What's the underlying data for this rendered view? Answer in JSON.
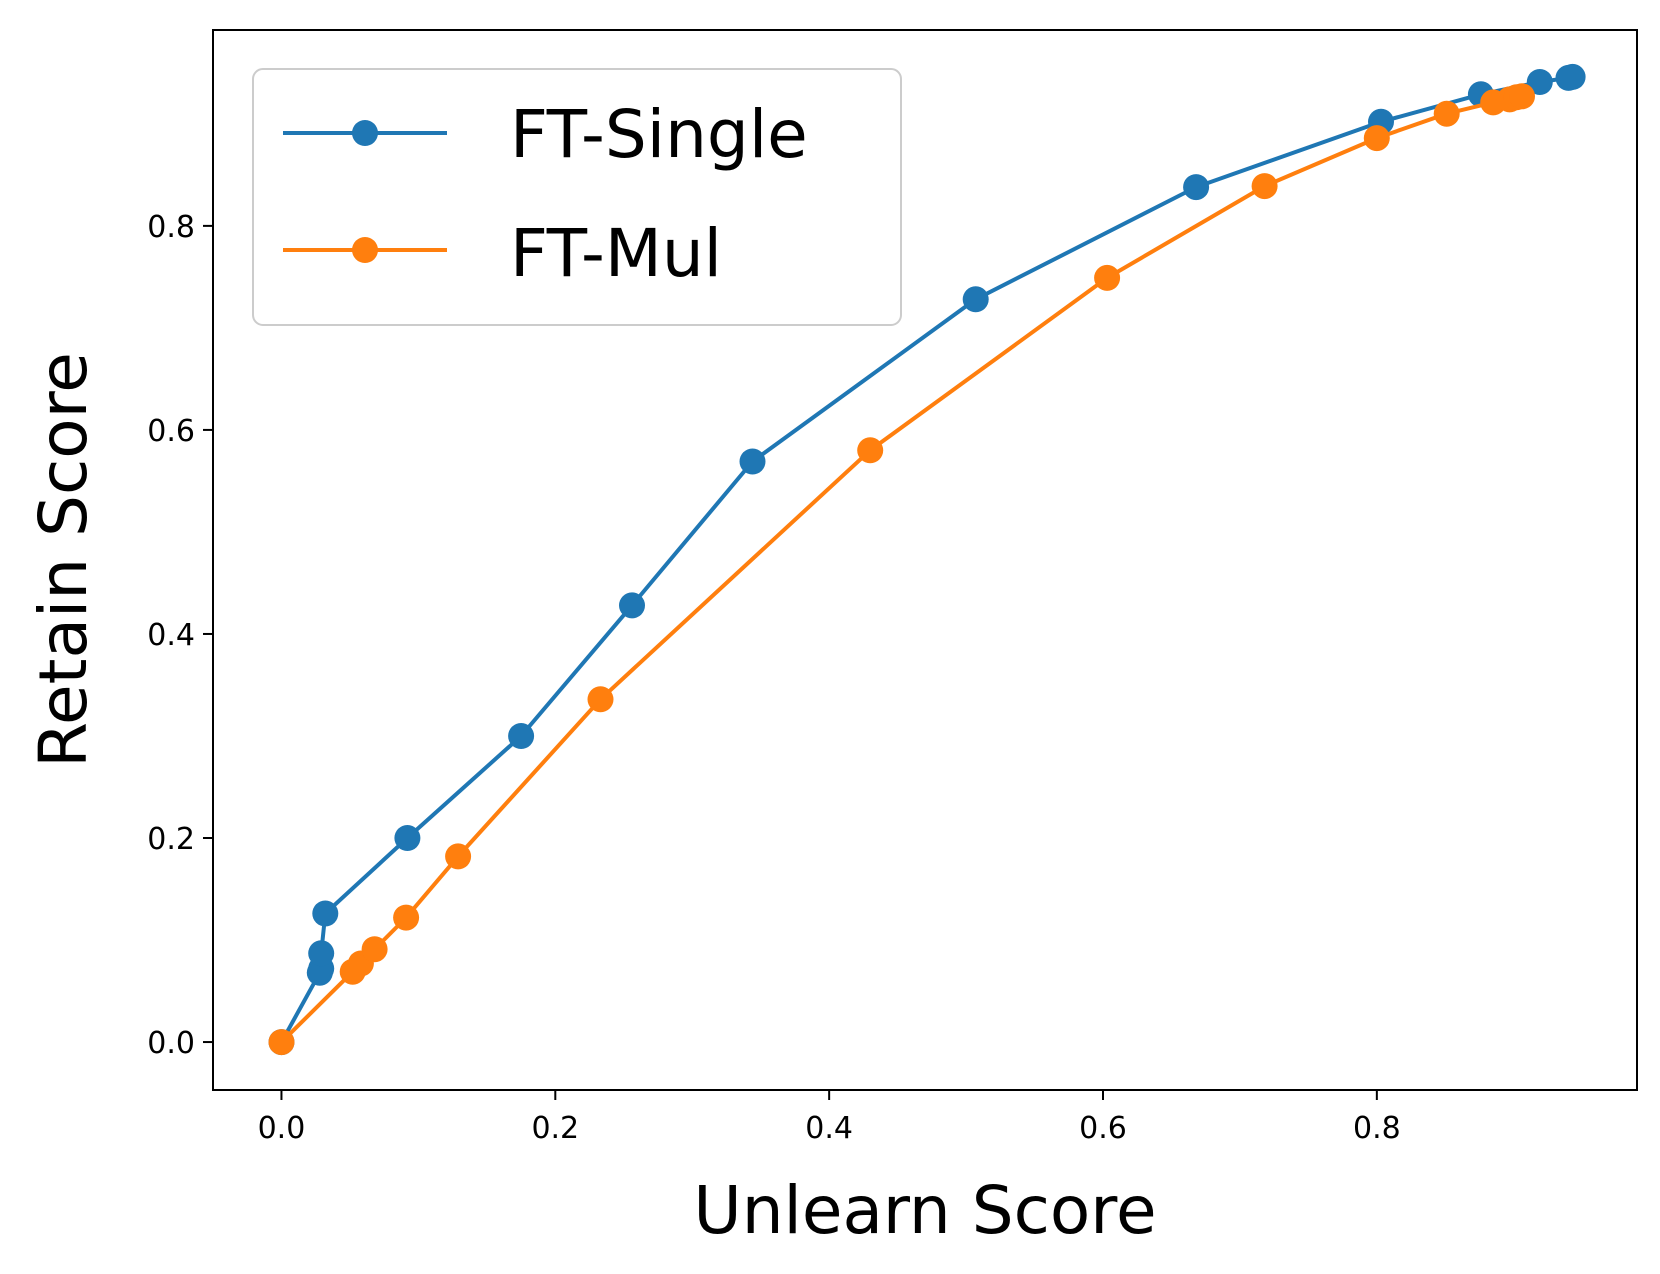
{
  "chart_data": {
    "type": "line",
    "xlabel": "Unlearn Score",
    "ylabel": "Retain Score",
    "xlim": [
      -0.05,
      0.99
    ],
    "ylim": [
      -0.047,
      0.992
    ],
    "xticks": [
      "0.0",
      "0.2",
      "0.4",
      "0.6",
      "0.8"
    ],
    "yticks": [
      "0.0",
      "0.2",
      "0.4",
      "0.6",
      "0.8"
    ],
    "grid": false,
    "legend_position": "upper-left",
    "series": [
      {
        "name": "FT-Single",
        "color": "#1f77b4",
        "marker": "circle",
        "points": [
          [
            0.0,
            0.0
          ],
          [
            0.028,
            0.068
          ],
          [
            0.029,
            0.072
          ],
          [
            0.029,
            0.087
          ],
          [
            0.032,
            0.126
          ],
          [
            0.092,
            0.2
          ],
          [
            0.175,
            0.3
          ],
          [
            0.256,
            0.428
          ],
          [
            0.344,
            0.569
          ],
          [
            0.507,
            0.728
          ],
          [
            0.668,
            0.838
          ],
          [
            0.803,
            0.902
          ],
          [
            0.876,
            0.929
          ],
          [
            0.919,
            0.941
          ],
          [
            0.94,
            0.945
          ],
          [
            0.943,
            0.946
          ]
        ]
      },
      {
        "name": "FT-Mul",
        "color": "#ff7f0e",
        "marker": "circle",
        "points": [
          [
            0.0,
            0.0
          ],
          [
            0.052,
            0.069
          ],
          [
            0.058,
            0.077
          ],
          [
            0.068,
            0.091
          ],
          [
            0.091,
            0.122
          ],
          [
            0.129,
            0.182
          ],
          [
            0.233,
            0.336
          ],
          [
            0.43,
            0.58
          ],
          [
            0.603,
            0.749
          ],
          [
            0.718,
            0.839
          ],
          [
            0.8,
            0.886
          ],
          [
            0.851,
            0.91
          ],
          [
            0.885,
            0.921
          ],
          [
            0.897,
            0.924
          ],
          [
            0.902,
            0.926
          ],
          [
            0.906,
            0.927
          ]
        ]
      }
    ]
  }
}
